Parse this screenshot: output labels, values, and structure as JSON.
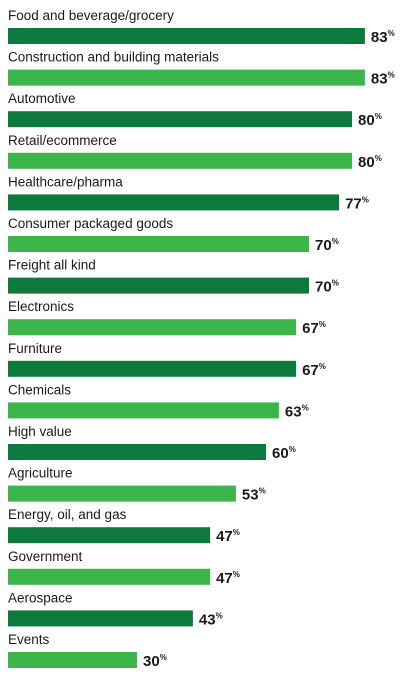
{
  "chart_data": {
    "type": "bar",
    "orientation": "horizontal",
    "value_suffix": "%",
    "xlim": [
      0,
      100
    ],
    "grid": false,
    "bar_colors": [
      "#0c7a3d",
      "#3cb54a"
    ],
    "categories": [
      "Food and beverage/grocery",
      "Construction and building materials",
      "Automotive",
      "Retail/ecommerce",
      "Healthcare/pharma",
      "Consumer packaged goods",
      "Freight all kind",
      "Electronics",
      "Furniture",
      "Chemicals",
      "High value",
      "Agriculture",
      "Energy, oil, and gas",
      "Government",
      "Aerospace",
      "Events"
    ],
    "values": [
      83,
      83,
      80,
      80,
      77,
      70,
      70,
      67,
      67,
      63,
      60,
      53,
      47,
      47,
      43,
      30
    ]
  }
}
